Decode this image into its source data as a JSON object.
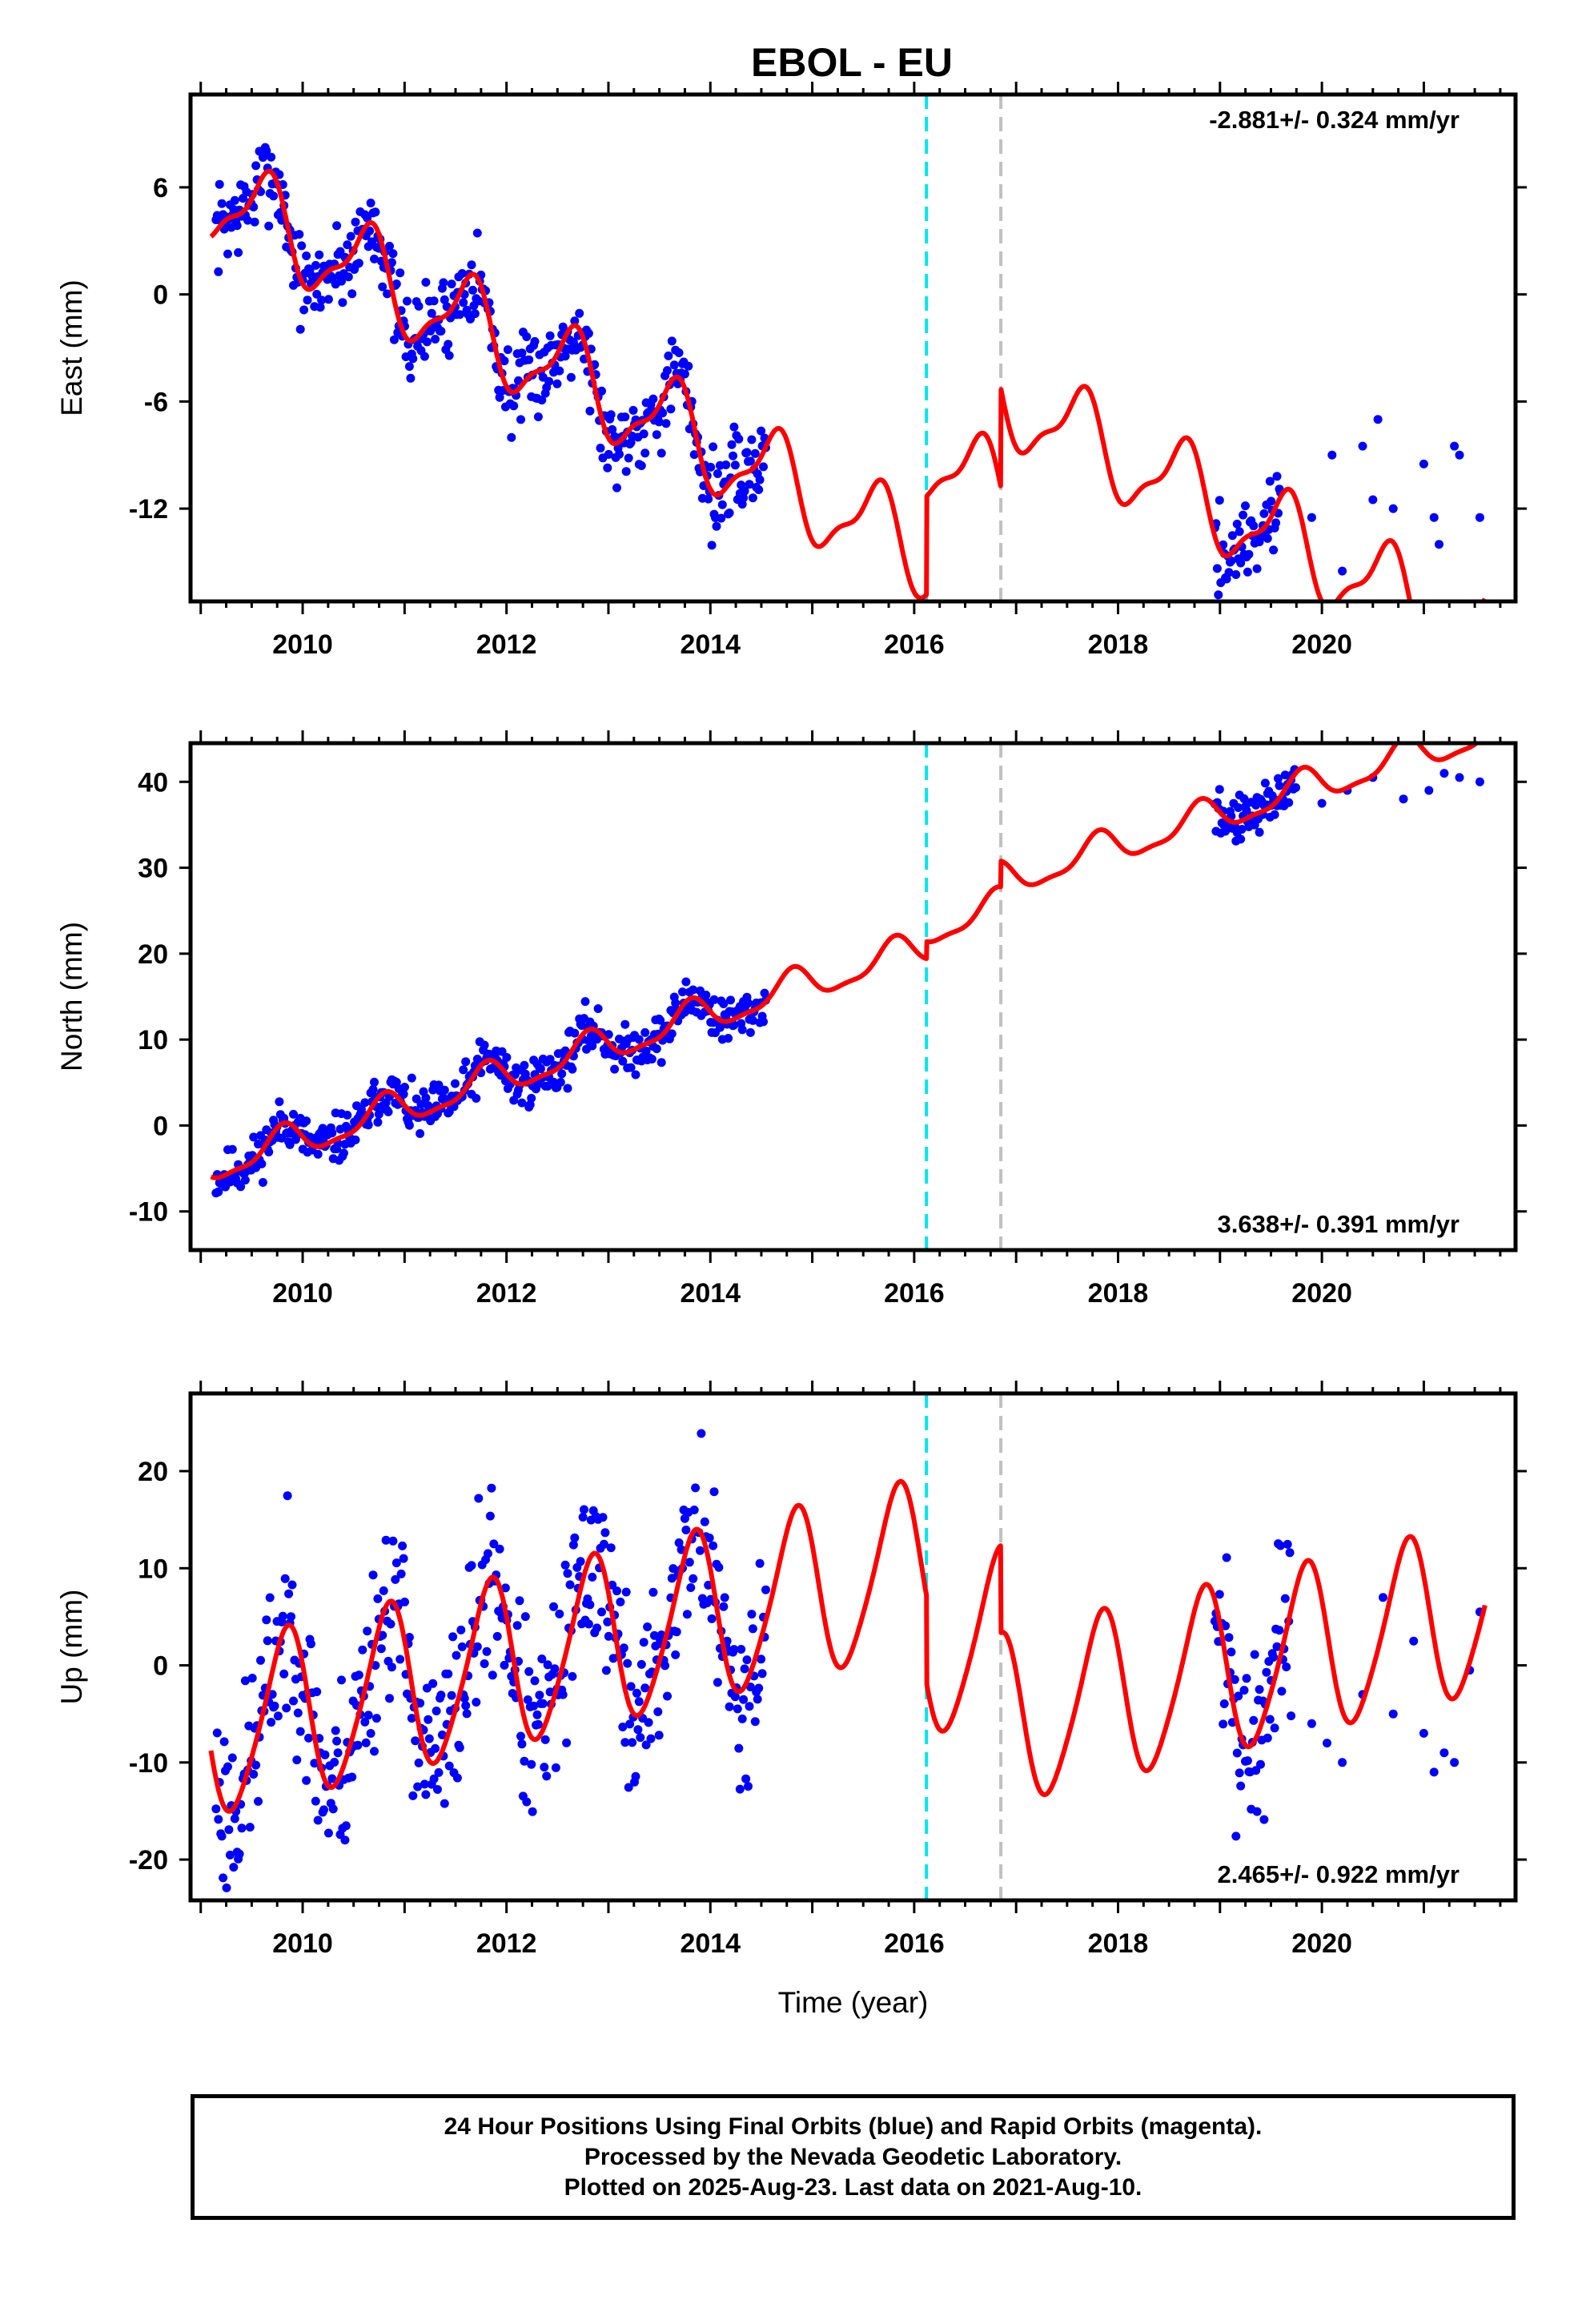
{
  "title": "EBOL - EU",
  "footer": {
    "line1": "24 Hour Positions Using Final Orbits (blue) and Rapid Orbits (magenta).",
    "line2": "Processed by the Nevada Geodetic Laboratory.",
    "line3": "Plotted on 2025-Aug-23. Last data on 2021-Aug-10."
  },
  "colors": {
    "data_points": "#0000ff",
    "model_line": "#ff0000",
    "equipment_change_line": "#00e5ee",
    "other_event_line": "#c0c0c0"
  },
  "chart_data": [
    {
      "type": "scatter",
      "name": "east",
      "ylabel": "East (mm)",
      "xlim": [
        2008.9,
        2021.9
      ],
      "ylim": [
        -17.2,
        11.2
      ],
      "yticks": [
        -12,
        -6,
        0,
        6
      ],
      "ytick_labels": [
        "-12",
        "-6",
        "0",
        "6"
      ],
      "xticks": [
        2010,
        2012,
        2014,
        2016,
        2018,
        2020
      ],
      "xtick_labels": [
        "2010",
        "2012",
        "2014",
        "2016",
        "2018",
        "2020"
      ],
      "rate_label": "-2.881+/- 0.324 mm/yr",
      "rate_position": "top-right",
      "vlines": [
        {
          "x": 2016.12,
          "style": "cyan-dashed"
        },
        {
          "x": 2016.85,
          "style": "gray-dashed"
        }
      ],
      "model": {
        "offset": 5.6,
        "trend": -2.881,
        "amp1": 2.4,
        "phase1": 0.38,
        "amp2": 0.8,
        "phase2": 0.1,
        "steps": [
          {
            "x": 2016.12,
            "size": 5.5
          },
          {
            "x": 2016.85,
            "size": 5.5
          }
        ],
        "x_range": [
          2009.1,
          2021.6
        ]
      },
      "points": {
        "segments": [
          [
            2009.15,
            2014.55
          ],
          [
            2018.95,
            2019.6
          ]
        ],
        "sparse_x": [
          2019.9,
          2020.1,
          2020.2,
          2020.4,
          2020.5,
          2020.55,
          2020.7,
          2021.0,
          2021.1,
          2021.15,
          2021.3,
          2021.35,
          2021.55
        ],
        "sparse_y": [
          -12.5,
          -9.0,
          -15.5,
          -8.5,
          -11.5,
          -7.0,
          -12.0,
          -9.5,
          -12.5,
          -14.0,
          -8.5,
          -9.0,
          -12.5
        ],
        "noise": 1.2,
        "seed": 7
      }
    },
    {
      "type": "scatter",
      "name": "north",
      "ylabel": "North (mm)",
      "xlim": [
        2008.9,
        2021.9
      ],
      "ylim": [
        -14.5,
        44.5
      ],
      "yticks": [
        -10,
        0,
        10,
        20,
        30,
        40
      ],
      "ytick_labels": [
        "-10",
        "0",
        "10",
        "20",
        "30",
        "40"
      ],
      "xticks": [
        2010,
        2012,
        2014,
        2016,
        2018,
        2020
      ],
      "xtick_labels": [
        "2010",
        "2012",
        "2014",
        "2016",
        "2018",
        "2020"
      ],
      "rate_label": "3.638+/- 0.391 mm/yr",
      "rate_position": "bottom-right",
      "vlines": [
        {
          "x": 2016.12,
          "style": "cyan-dashed"
        },
        {
          "x": 2016.85,
          "style": "gray-dashed"
        }
      ],
      "model": {
        "offset": -4.8,
        "trend": 3.638,
        "amp1": 1.9,
        "phase1": 0.55,
        "amp2": 0.6,
        "phase2": 0.2,
        "steps": [
          {
            "x": 2016.12,
            "size": 2.0
          },
          {
            "x": 2016.85,
            "size": 3.0
          }
        ],
        "x_range": [
          2009.1,
          2021.6
        ]
      },
      "points": {
        "segments": [
          [
            2009.15,
            2014.55
          ],
          [
            2018.95,
            2019.75
          ]
        ],
        "sparse_x": [
          2020.0,
          2020.25,
          2020.5,
          2020.8,
          2021.05,
          2021.2,
          2021.35,
          2021.55
        ],
        "sparse_y": [
          37.5,
          39.0,
          40.5,
          38.0,
          39.0,
          41.0,
          40.5,
          40.0
        ],
        "noise": 1.4,
        "seed": 11
      }
    },
    {
      "type": "scatter",
      "name": "up",
      "ylabel": "Up (mm)",
      "xlabel": "Time (year)",
      "xlim": [
        2008.9,
        2021.9
      ],
      "ylim": [
        -24.2,
        28.0
      ],
      "yticks": [
        -20,
        -10,
        0,
        10,
        20
      ],
      "ytick_labels": [
        "-20",
        "-10",
        "0",
        "10",
        "20"
      ],
      "xticks": [
        2010,
        2012,
        2014,
        2016,
        2018,
        2020
      ],
      "xtick_labels": [
        "2010",
        "2012",
        "2014",
        "2016",
        "2018",
        "2020"
      ],
      "rate_label": "2.465+/- 0.922 mm/yr",
      "rate_position": "bottom-right",
      "vlines": [
        {
          "x": 2016.12,
          "style": "cyan-dashed"
        },
        {
          "x": 2016.85,
          "style": "gray-dashed"
        }
      ],
      "model": {
        "offset": -7.0,
        "trend": 2.465,
        "amp1": 8.6,
        "phase1": 0.58,
        "amp2": 1.2,
        "phase2": 0.3,
        "steps": [
          {
            "x": 2016.12,
            "size": -9.0
          },
          {
            "x": 2016.85,
            "size": -9.0
          }
        ],
        "x_range": [
          2009.1,
          2021.6
        ]
      },
      "points": {
        "segments": [
          [
            2009.15,
            2014.55
          ],
          [
            2018.95,
            2019.7
          ]
        ],
        "sparse_x": [
          2019.9,
          2020.05,
          2020.2,
          2020.4,
          2020.6,
          2020.7,
          2020.9,
          2021.0,
          2021.1,
          2021.2,
          2021.3,
          2021.45,
          2021.55
        ],
        "sparse_y": [
          -6.0,
          -8.0,
          -10.0,
          -3.0,
          7.0,
          -5.0,
          2.5,
          -7.0,
          -11.0,
          -9.0,
          -10.0,
          -0.5,
          5.5
        ],
        "noise": 4.8,
        "seed": 23
      }
    }
  ]
}
